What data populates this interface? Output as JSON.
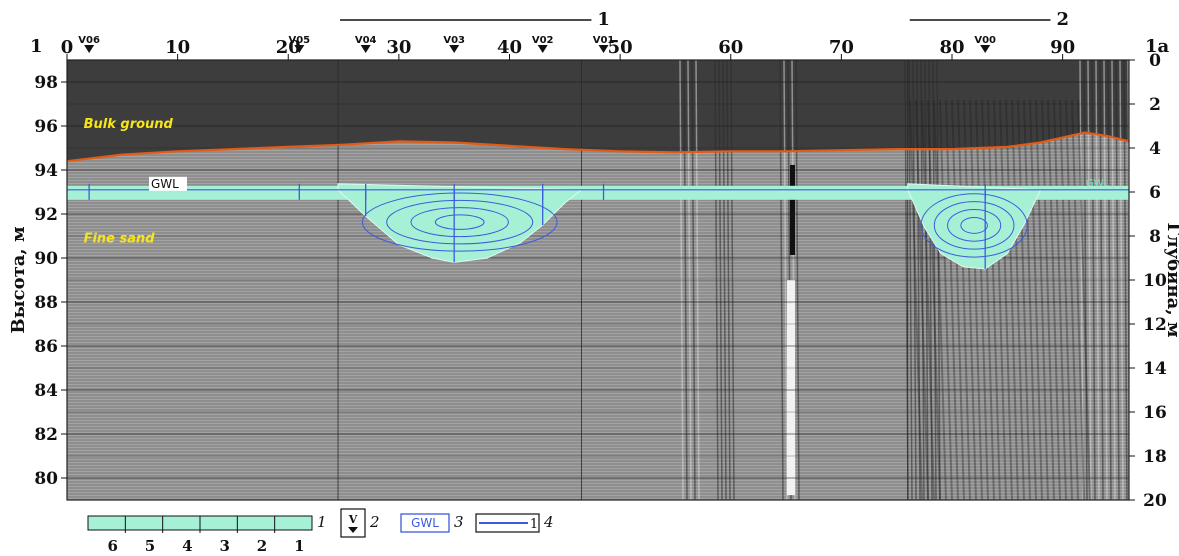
{
  "chart_data": {
    "type": "cross-section",
    "ylabel_left": "Высота, м",
    "ylabel_right": "Глубина, м",
    "x_ticks": [
      0,
      10,
      20,
      30,
      40,
      50,
      60,
      70,
      80,
      90
    ],
    "x_range": [
      0,
      96
    ],
    "x_axis_prefix": "1",
    "x_axis_suffix": "1a",
    "y_left_ticks": [
      80,
      82,
      84,
      86,
      88,
      90,
      92,
      94,
      96,
      98
    ],
    "y_left_range": [
      79,
      99
    ],
    "y_right_ticks": [
      0,
      2,
      4,
      6,
      8,
      10,
      12,
      14,
      16,
      18,
      20
    ],
    "y_right_range": [
      0,
      20
    ],
    "surface_elevation": 99,
    "layer_labels": [
      {
        "text": "Bulk ground",
        "x": 1.5,
        "y": 95.9
      },
      {
        "text": "Fine sand",
        "x": 1.5,
        "y": 90.7
      }
    ],
    "gwl_label": "GWL",
    "gwl_label_right": "GWL",
    "gwl_level": 93.1,
    "boundary": {
      "x": [
        0,
        5,
        10,
        15,
        20,
        25,
        30,
        35,
        40,
        45,
        50,
        55,
        60,
        65,
        70,
        75,
        80,
        85,
        88,
        92,
        94,
        96
      ],
      "y": [
        94.4,
        94.7,
        94.85,
        94.95,
        95.05,
        95.15,
        95.3,
        95.25,
        95.1,
        94.95,
        94.85,
        94.8,
        94.85,
        94.85,
        94.9,
        94.95,
        94.95,
        95.05,
        95.25,
        95.7,
        95.55,
        95.3
      ]
    },
    "boreholes": [
      {
        "name": "V06",
        "x": 2
      },
      {
        "name": "V05",
        "x": 21
      },
      {
        "name": "V04",
        "x": 27
      },
      {
        "name": "V03",
        "x": 35
      },
      {
        "name": "V02",
        "x": 43
      },
      {
        "name": "V01",
        "x": 48.5
      },
      {
        "name": "V00",
        "x": 83
      }
    ],
    "zones": [
      {
        "label": "1",
        "x": [
          24.5,
          46.5
        ],
        "outline": {
          "x": [
            24.5,
            27,
            30,
            33,
            35,
            38,
            41,
            43,
            45,
            46.5
          ],
          "y": [
            93.1,
            91.9,
            90.6,
            90.0,
            89.8,
            90.0,
            90.7,
            91.5,
            92.5,
            93.1
          ]
        }
      },
      {
        "label": "2",
        "x": [
          76,
          88
        ],
        "outline": {
          "x": [
            76,
            77.5,
            79,
            81,
            83,
            85,
            86.5,
            88
          ],
          "y": [
            93.1,
            91.4,
            90.2,
            89.6,
            89.5,
            90.2,
            91.5,
            93.1
          ]
        }
      }
    ],
    "legend": {
      "scale_numbers": [
        "6",
        "5",
        "4",
        "3",
        "2",
        "1"
      ],
      "items": [
        {
          "num": "1"
        },
        {
          "num": "2",
          "symbol_text": "V"
        },
        {
          "num": "3",
          "symbol_text": "GWL"
        },
        {
          "num": "4",
          "symbol_text": "1"
        }
      ]
    },
    "colors": {
      "boundary": "#e25b17",
      "water": "#a6f1d6",
      "contour": "#3d5adc",
      "label_yellow": "#f6e51b"
    }
  }
}
